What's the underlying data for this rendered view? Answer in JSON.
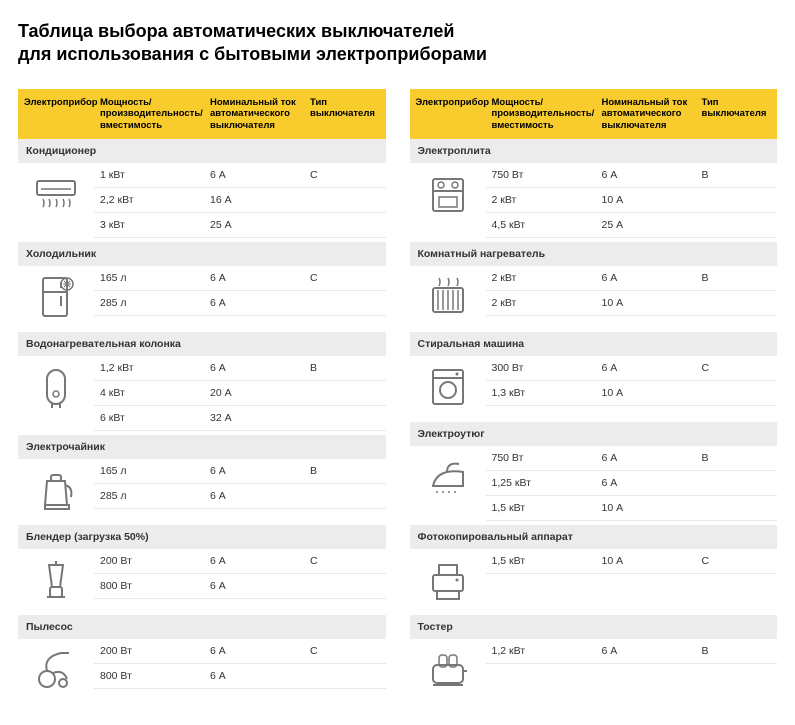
{
  "title": "Таблица выбора автоматических выключателей\nдля использования с бытовыми электроприборами",
  "colors": {
    "header_bg": "#f8cc2d",
    "section_bg": "#ececec",
    "border": "#e8e8e8",
    "text": "#333333",
    "icon_stroke": "#777777"
  },
  "headers": {
    "appliance": "Электроприбор",
    "power": "Мощность/\nпроизводительность/\nвместимость",
    "current": "Номинальный ток\nавтоматического\nвыключателя",
    "type": "Тип\nвыключателя"
  },
  "left": [
    {
      "name": "Кондиционер",
      "icon": "ac",
      "rows": [
        {
          "power": "1 кВт",
          "current": "6 А",
          "type": "C"
        },
        {
          "power": "2,2 кВт",
          "current": "16 А",
          "type": ""
        },
        {
          "power": "3 кВт",
          "current": "25 А",
          "type": ""
        }
      ]
    },
    {
      "name": "Холодильник",
      "icon": "fridge",
      "rows": [
        {
          "power": "165 л",
          "current": "6 А",
          "type": "C"
        },
        {
          "power": "285 л",
          "current": "6 А",
          "type": ""
        }
      ]
    },
    {
      "name": "Водонагревательная колонка",
      "icon": "boiler",
      "rows": [
        {
          "power": "1,2 кВт",
          "current": "6 А",
          "type": "B"
        },
        {
          "power": "4 кВт",
          "current": "20 А",
          "type": ""
        },
        {
          "power": "6 кВт",
          "current": "32 А",
          "type": ""
        }
      ]
    },
    {
      "name": "Электрочайник",
      "icon": "kettle",
      "rows": [
        {
          "power": "165 л",
          "current": "6 А",
          "type": "B"
        },
        {
          "power": "285 л",
          "current": "6 А",
          "type": ""
        }
      ]
    },
    {
      "name": "Блендер (загрузка 50%)",
      "icon": "blender",
      "rows": [
        {
          "power": "200 Вт",
          "current": "6 А",
          "type": "C"
        },
        {
          "power": "800 Вт",
          "current": "6 А",
          "type": ""
        }
      ]
    },
    {
      "name": "Пылесос",
      "icon": "vacuum",
      "rows": [
        {
          "power": "200 Вт",
          "current": "6 А",
          "type": "C"
        },
        {
          "power": "800 Вт",
          "current": "6 А",
          "type": ""
        }
      ]
    }
  ],
  "right": [
    {
      "name": "Электроплита",
      "icon": "stove",
      "rows": [
        {
          "power": "750 Вт",
          "current": "6 А",
          "type": "B"
        },
        {
          "power": "2 кВт",
          "current": "10 А",
          "type": ""
        },
        {
          "power": "4,5 кВт",
          "current": "25 А",
          "type": ""
        }
      ]
    },
    {
      "name": "Комнатный нагреватель",
      "icon": "heater",
      "rows": [
        {
          "power": "2 кВт",
          "current": "6 А",
          "type": "B"
        },
        {
          "power": "2 кВт",
          "current": "10 А",
          "type": ""
        }
      ]
    },
    {
      "name": "Стиральная машина",
      "icon": "washer",
      "rows": [
        {
          "power": "300 Вт",
          "current": "6 А",
          "type": "C"
        },
        {
          "power": "1,3 кВт",
          "current": "10 А",
          "type": ""
        }
      ]
    },
    {
      "name": "Электроутюг",
      "icon": "iron",
      "rows": [
        {
          "power": "750 Вт",
          "current": "6 А",
          "type": "B"
        },
        {
          "power": "1,25 кВт",
          "current": "6 А",
          "type": ""
        },
        {
          "power": "1,5 кВт",
          "current": "10 А",
          "type": ""
        }
      ]
    },
    {
      "name": "Фотокопировальный аппарат",
      "icon": "copier",
      "rows": [
        {
          "power": "1,5 кВт",
          "current": "10 А",
          "type": "C"
        }
      ]
    },
    {
      "name": "Тостер",
      "icon": "toaster",
      "rows": [
        {
          "power": "1,2 кВт",
          "current": "6 А",
          "type": "B"
        }
      ]
    }
  ]
}
